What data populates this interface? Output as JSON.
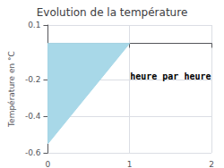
{
  "chart_data": {
    "type": "polygon",
    "title": "Evolution de la température",
    "ylabel": "Température en °C",
    "x": [
      0,
      1,
      0
    ],
    "values": [
      0.0,
      0.0,
      -0.55
    ],
    "color": "#a8d8e8",
    "xlim": [
      0,
      2
    ],
    "xticks": [
      0,
      1,
      2
    ],
    "ylim": [
      -0.6,
      0.1
    ],
    "yticks": [
      -0.6,
      -0.4,
      -0.2,
      0.1
    ],
    "grid": true,
    "annotations": [
      {
        "text": "heure par heure",
        "x": 1.5,
        "y": -0.18
      }
    ]
  }
}
